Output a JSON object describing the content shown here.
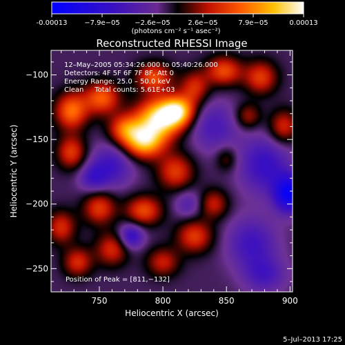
{
  "chart_data": {
    "type": "heatmap",
    "title": "Reconstructed RHESSI Image",
    "xlabel": "Heliocentric X (arcsec)",
    "ylabel": "Heliocentric Y (arcsec)",
    "xlim": [
      712,
      902
    ],
    "ylim": [
      -268,
      -81
    ],
    "x_ticks": [
      750,
      800,
      850,
      900
    ],
    "y_ticks": [
      -100,
      -150,
      -200,
      -250
    ],
    "colorbar": {
      "ticks": [
        "-0.00013",
        "−7.9e−05",
        "−2.6e−05",
        "2.6e−05",
        "7.9e−05",
        "0.00013"
      ],
      "range": [
        -0.00013,
        0.00013
      ],
      "unit_label": "(photons cm⁻² s⁻¹ asec⁻²)"
    },
    "annotations": [
      "12–May–2005 05:34:26.000 to 05:40:26.000",
      "Detectors: 4F 5F 6F 7F 8F, Att 0",
      "Energy Range: 25.0 – 50.0 keV",
      "Clean     Total counts: 5.61E+03"
    ],
    "peak_label": "Position of Peak = [811,−132]",
    "peak": [
      811,
      -132
    ],
    "blobs": [
      [
        797,
        -134,
        13,
        11,
        1.0
      ],
      [
        785,
        -152,
        11,
        9,
        0.85
      ],
      [
        812,
        -128,
        9,
        8,
        0.8
      ],
      [
        770,
        -142,
        9,
        8,
        0.55
      ],
      [
        752,
        -118,
        10,
        9,
        0.6
      ],
      [
        728,
        -128,
        9,
        10,
        0.65
      ],
      [
        728,
        -160,
        8,
        9,
        0.5
      ],
      [
        793,
        -102,
        10,
        8,
        0.55
      ],
      [
        825,
        -110,
        8,
        9,
        0.45
      ],
      [
        848,
        -97,
        10,
        8,
        0.55
      ],
      [
        877,
        -102,
        9,
        9,
        0.5
      ],
      [
        895,
        -140,
        8,
        9,
        0.45
      ],
      [
        867,
        -132,
        7,
        7,
        0.35
      ],
      [
        810,
        -175,
        10,
        10,
        0.5
      ],
      [
        785,
        -205,
        10,
        8,
        0.55
      ],
      [
        750,
        -203,
        9,
        9,
        0.5
      ],
      [
        720,
        -218,
        8,
        9,
        0.45
      ],
      [
        825,
        -225,
        10,
        9,
        0.5
      ],
      [
        840,
        -200,
        8,
        8,
        0.4
      ],
      [
        760,
        -235,
        9,
        9,
        0.45
      ],
      [
        800,
        -245,
        9,
        8,
        0.4
      ],
      [
        733,
        -245,
        8,
        8,
        0.45
      ],
      [
        850,
        -165,
        6,
        7,
        0.25
      ],
      [
        760,
        -170,
        12,
        12,
        -0.35
      ],
      [
        840,
        -140,
        14,
        14,
        -0.3
      ],
      [
        880,
        -170,
        14,
        16,
        -0.4
      ],
      [
        899,
        -192,
        8,
        10,
        -0.75
      ],
      [
        870,
        -230,
        14,
        14,
        -0.35
      ],
      [
        775,
        -225,
        7,
        7,
        -0.45
      ],
      [
        820,
        -200,
        8,
        8,
        -0.25
      ],
      [
        745,
        -180,
        8,
        8,
        -0.3
      ],
      [
        880,
        -255,
        12,
        10,
        -0.3
      ]
    ]
  },
  "footer": {
    "timestamp": "5–Jul–2013 17:25"
  }
}
